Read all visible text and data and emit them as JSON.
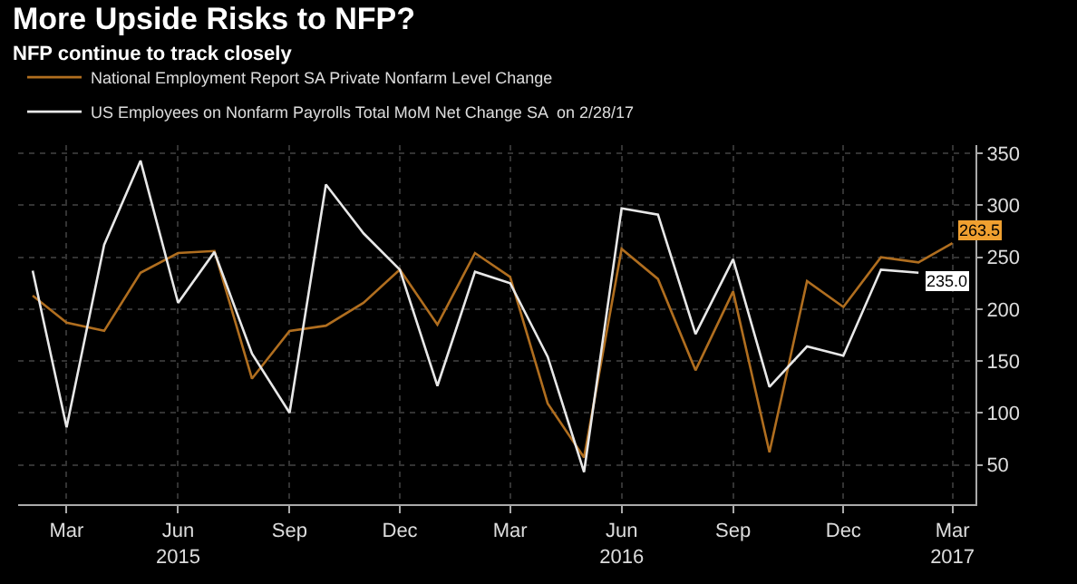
{
  "chart_data": {
    "type": "line",
    "title": "More Upside Risks to NFP?",
    "subtitle": "NFP continue to track closely",
    "series": [
      {
        "name": "National Employment Report SA Private Nonfarm Level Change",
        "color": "#b06e1f",
        "x": [
          "2015-02",
          "2015-03",
          "2015-04",
          "2015-05",
          "2015-06",
          "2015-07",
          "2015-08",
          "2015-09",
          "2015-10",
          "2015-11",
          "2015-12",
          "2016-01",
          "2016-02",
          "2016-03",
          "2016-04",
          "2016-05",
          "2016-06",
          "2016-07",
          "2016-08",
          "2016-09",
          "2016-10",
          "2016-11",
          "2016-12",
          "2017-01",
          "2017-02",
          "2017-03"
        ],
        "values": [
          213,
          187,
          179,
          235,
          254,
          256,
          133,
          179,
          184,
          206,
          238,
          185,
          254,
          231,
          109,
          57,
          258,
          229,
          141,
          217,
          62,
          227,
          202,
          250,
          245,
          263.5
        ]
      },
      {
        "name": "US Employees on Nonfarm Payrolls Total MoM Net Change SA  on 2/28/17",
        "color": "#e8e8e8",
        "x": [
          "2015-02",
          "2015-03",
          "2015-04",
          "2015-05",
          "2015-06",
          "2015-07",
          "2015-08",
          "2015-09",
          "2015-10",
          "2015-11",
          "2015-12",
          "2016-01",
          "2016-02",
          "2016-03",
          "2016-04",
          "2016-05",
          "2016-06",
          "2016-07",
          "2016-08",
          "2016-09",
          "2016-10",
          "2016-11",
          "2016-12",
          "2017-01",
          "2017-02"
        ],
        "values": [
          237,
          86,
          262,
          343,
          206,
          255,
          157,
          100,
          320,
          273,
          238,
          126,
          236,
          225,
          154,
          43,
          297,
          291,
          176,
          248,
          125,
          164,
          155,
          238,
          235
        ]
      }
    ],
    "xlim": [
      "2015-01-20",
      "2017-03-20"
    ],
    "xticks": [
      {
        "value": "2015-03",
        "label": "Mar"
      },
      {
        "value": "2015-06",
        "label": "Jun\n2015"
      },
      {
        "value": "2015-09",
        "label": "Sep"
      },
      {
        "value": "2015-12",
        "label": "Dec"
      },
      {
        "value": "2016-03",
        "label": "Mar"
      },
      {
        "value": "2016-06",
        "label": "Jun\n2016"
      },
      {
        "value": "2016-09",
        "label": "Sep"
      },
      {
        "value": "2016-12",
        "label": "Dec"
      },
      {
        "value": "2017-03",
        "label": "Mar\n2017"
      }
    ],
    "ylim": [
      12,
      358
    ],
    "yticks": [
      50,
      100,
      150,
      200,
      250,
      300,
      350
    ],
    "annotations": [
      {
        "text": "263.5",
        "x": "2017-03",
        "y": 263.5
      },
      {
        "text": "235.0",
        "x": "2017-02",
        "y": 235
      }
    ],
    "grid": true,
    "legend": "top left",
    "marker": "none",
    "line_style": "solid"
  }
}
